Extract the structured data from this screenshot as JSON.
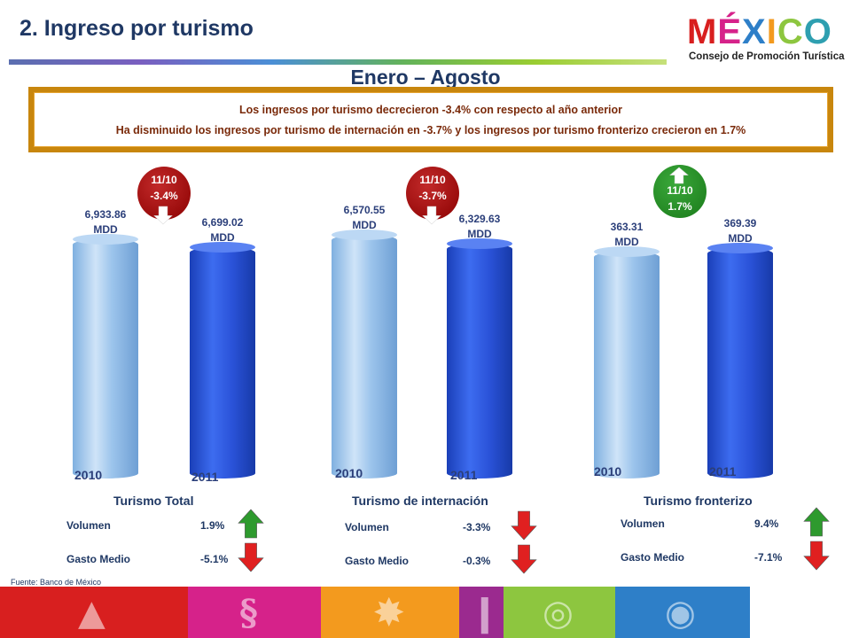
{
  "header": {
    "title": "2. Ingreso por turismo",
    "subtitle": "Enero – Agosto",
    "logo_word": "MÉXICO",
    "logo_sub": "Consejo de Promoción Turística"
  },
  "banner": {
    "line1": "Los ingresos por turismo decrecieron -3.4% con respecto al año anterior",
    "line2": "Ha disminuido los ingresos por turismo de internación en -3.7% y los ingresos por turismo fronterizo crecieron en 1.7%"
  },
  "colors": {
    "bar_2010": "#9cc4ec",
    "bar_2011": "#2a52d8",
    "down": "#8b0000",
    "up": "#1a7a1a"
  },
  "chart_data": [
    {
      "type": "bar",
      "title": "Turismo Total",
      "categories": [
        "2010",
        "2011"
      ],
      "values": [
        6933.86,
        6699.02
      ],
      "value_labels": [
        "6,933.86",
        "6,699.02"
      ],
      "unit": "MDD",
      "change_label": "11/10",
      "change": "-3.4%",
      "direction": "down",
      "indicators": [
        {
          "label": "Volumen",
          "value": "1.9%",
          "direction": "up"
        },
        {
          "label": "Gasto Medio",
          "value": "-5.1%",
          "direction": "down"
        }
      ]
    },
    {
      "type": "bar",
      "title": "Turismo de internación",
      "categories": [
        "2010",
        "2011"
      ],
      "values": [
        6570.55,
        6329.63
      ],
      "value_labels": [
        "6,570.55",
        "6,329.63"
      ],
      "unit": "MDD",
      "change_label": "11/10",
      "change": "-3.7%",
      "direction": "down",
      "indicators": [
        {
          "label": "Volumen",
          "value": "-3.3%",
          "direction": "down"
        },
        {
          "label": "Gasto Medio",
          "value": "-0.3%",
          "direction": "down"
        }
      ]
    },
    {
      "type": "bar",
      "title": "Turismo fronterizo",
      "categories": [
        "2010",
        "2011"
      ],
      "values": [
        363.31,
        369.39
      ],
      "value_labels": [
        "363.31",
        "369.39"
      ],
      "unit": "MDD",
      "change_label": "11/10",
      "change": "1.7%",
      "direction": "up",
      "indicators": [
        {
          "label": "Volumen",
          "value": "9.4%",
          "direction": "up"
        },
        {
          "label": "Gasto Medio",
          "value": "-7.1%",
          "direction": "down"
        }
      ]
    }
  ],
  "footer": {
    "source": "Fuente: Banco de México"
  }
}
